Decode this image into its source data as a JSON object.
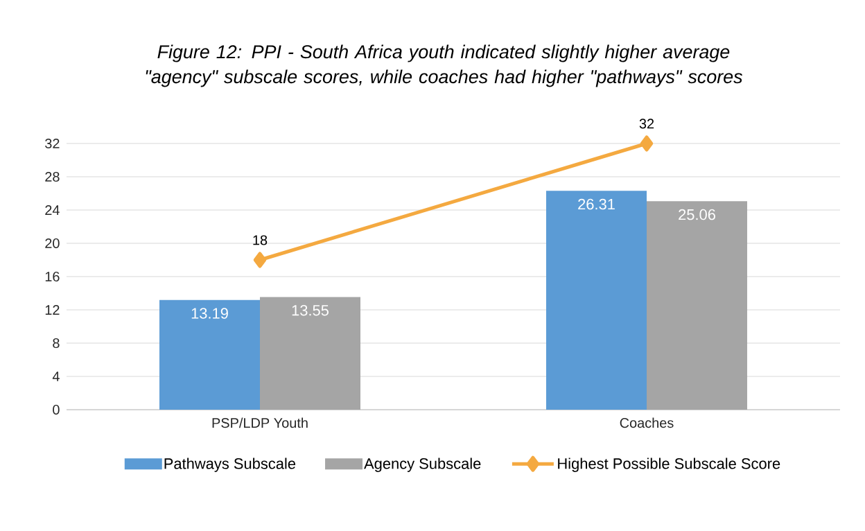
{
  "chart_data": {
    "type": "bar",
    "title": "Figure 12: PPI - South Africa youth indicated slightly higher average \"agency\" subscale scores, while coaches had higher \"pathways\" scores",
    "categories": [
      "PSP/LDP Youth",
      "Coaches"
    ],
    "series": [
      {
        "name": "Pathways Subscale",
        "color": "#5b9bd5",
        "values": [
          13.19,
          26.31
        ]
      },
      {
        "name": "Agency Subscale",
        "color": "#a5a5a5",
        "values": [
          13.55,
          25.06
        ]
      },
      {
        "name": "Highest Possible Subscale Score",
        "type": "line",
        "color": "#f4a940",
        "values": [
          18,
          32
        ],
        "marker": "diamond",
        "line_style": "solid"
      }
    ],
    "ylim": [
      0,
      32
    ],
    "yticks": [
      0,
      4,
      8,
      12,
      16,
      20,
      24,
      28,
      32
    ],
    "grid": "y",
    "legend": "bottom",
    "data_labels": true
  }
}
